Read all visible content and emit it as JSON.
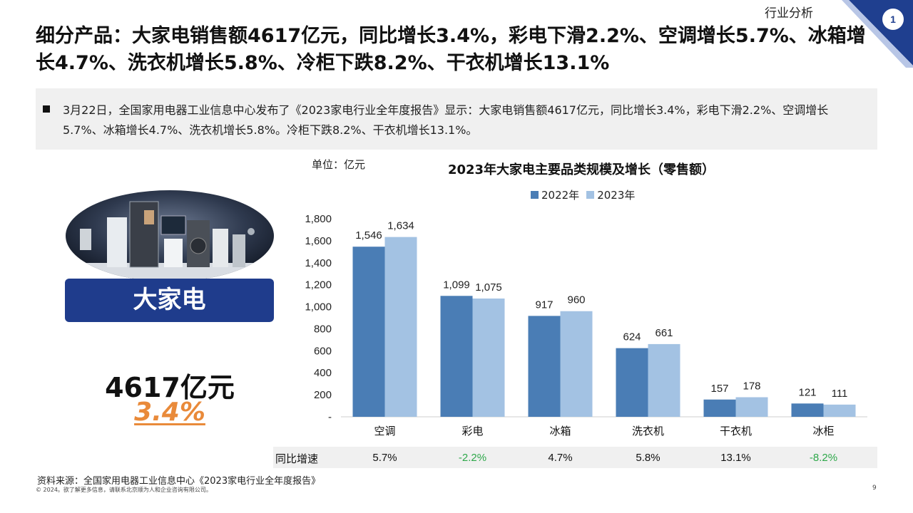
{
  "header": {
    "section_label": "行业分析",
    "corner_number": "1",
    "headline": "细分产品：大家电销售额4617亿元，同比增长3.4%，彩电下滑2.2%、空调增长5.7%、冰箱增长4.7%、洗衣机增长5.8%、冷柜下跌8.2%、干衣机增长13.1%"
  },
  "note": {
    "text": "3月22日，全国家用电器工业信息中心发布了《2023家电行业全年度报告》显示：大家电销售额4617亿元，同比增长3.4%，彩电下滑2.2%、空调增长5.7%、冰箱增长4.7%、洗衣机增长5.8%。冷柜下跌8.2%、干衣机增长13.1%。"
  },
  "product": {
    "label": "大家电",
    "total": "4617亿元",
    "growth": "3.4%"
  },
  "chart_data": {
    "type": "bar",
    "title": "2023年大家电主要品类规模及增长（零售额）",
    "unit": "单位：亿元",
    "categories": [
      "空调",
      "彩电",
      "冰箱",
      "洗衣机",
      "干衣机",
      "冰柜"
    ],
    "series": [
      {
        "name": "2022年",
        "values": [
          1546,
          1099,
          917,
          624,
          157,
          121
        ],
        "labels": [
          "1,546",
          "1,099",
          "917",
          "624",
          "157",
          "121"
        ],
        "color": "#4a7db5"
      },
      {
        "name": "2023年",
        "values": [
          1634,
          1075,
          960,
          661,
          178,
          111
        ],
        "labels": [
          "1,634",
          "1,075",
          "960",
          "661",
          "178",
          "111"
        ],
        "color": "#a3c2e3"
      }
    ],
    "ylim": [
      0,
      1800
    ],
    "yticks": [
      0,
      200,
      400,
      600,
      800,
      1000,
      1200,
      1400,
      1600,
      1800
    ],
    "ytick_labels": [
      "-",
      "200",
      "400",
      "600",
      "800",
      "1,000",
      "1,200",
      "1,400",
      "1,600",
      "1,800"
    ],
    "legend_position": "top",
    "grid": false
  },
  "growth_row": {
    "label": "同比增速",
    "values": [
      "5.7%",
      "-2.2%",
      "4.7%",
      "5.8%",
      "13.1%",
      "-8.2%"
    ],
    "positive_color": "#111111",
    "negative_color": "#2ea84a"
  },
  "footer": {
    "source": "资料来源：全国家用电器工业信息中心《2023家电行业全年度报告》",
    "copyright": "© 2024。欲了解更多信息，请联系北京顺为人和企业咨询有限公司。",
    "page_number": "9"
  },
  "colors": {
    "brand_blue": "#1f3c8c",
    "accent_orange": "#e98a3a",
    "panel_grey": "#f0f0f0"
  }
}
